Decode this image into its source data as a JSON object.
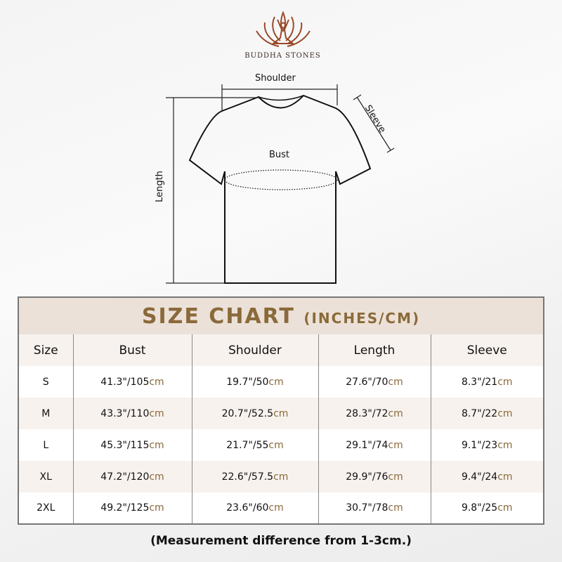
{
  "brand": {
    "name": "BUDDHA STONES",
    "logo_icon": "lotus-meditation-icon",
    "color": "#9a4a2a"
  },
  "diagram": {
    "shoulder": "Shoulder",
    "sleeve": "Sleeve",
    "bust": "Bust",
    "length": "Length"
  },
  "table": {
    "title": "SIZE CHART",
    "unit": "(INCHES/CM)",
    "accent": "#8a6a3a",
    "headers": [
      "Size",
      "Bust",
      "Shoulder",
      "Length",
      "Sleeve"
    ],
    "cm_suffix": "cm",
    "rows": [
      {
        "size": "S",
        "bust": "41.3\"/105",
        "shoulder": "19.7\"/50",
        "length": "27.6\"/70",
        "sleeve": "8.3\"/21"
      },
      {
        "size": "M",
        "bust": "43.3\"/110",
        "shoulder": "20.7\"/52.5",
        "length": "28.3\"/72",
        "sleeve": "8.7\"/22"
      },
      {
        "size": "L",
        "bust": "45.3\"/115",
        "shoulder": "21.7\"/55",
        "length": "29.1\"/74",
        "sleeve": "9.1\"/23"
      },
      {
        "size": "XL",
        "bust": "47.2\"/120",
        "shoulder": "22.6\"/57.5",
        "length": "29.9\"/76",
        "sleeve": "9.4\"/24"
      },
      {
        "size": "2XL",
        "bust": "49.2\"/125",
        "shoulder": "23.6\"/60",
        "length": "30.7\"/78",
        "sleeve": "9.8\"/25"
      }
    ]
  },
  "note": "(Measurement difference from 1-3cm.)"
}
